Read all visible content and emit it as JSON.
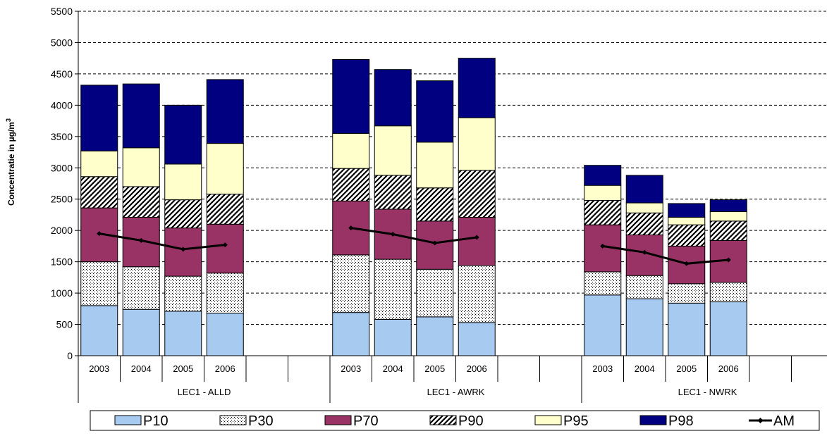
{
  "chart_data": {
    "type": "bar",
    "stacked": true,
    "ylabel": "Concentratie in µg/m",
    "ylabel_superscript": "3",
    "ylim": [
      0,
      5500
    ],
    "ytick_step": 500,
    "grid": "horizontal dashed",
    "legend_position": "bottom",
    "groups": [
      {
        "name": "LEC1 - ALLD",
        "categories": [
          "2003",
          "2004",
          "2005",
          "2006",
          "",
          ""
        ]
      },
      {
        "name": "LEC1 - AWRK",
        "categories": [
          "2003",
          "2004",
          "2005",
          "2006",
          "",
          ""
        ]
      },
      {
        "name": "LEC1 - NWRK",
        "categories": [
          "2003",
          "2004",
          "2005",
          "2006",
          "",
          ""
        ]
      }
    ],
    "series": [
      {
        "name": "P10",
        "pattern": "solid",
        "color": "#a6caf0",
        "values": [
          [
            800,
            740,
            710,
            680
          ],
          [
            690,
            580,
            620,
            530
          ],
          [
            970,
            910,
            840,
            860
          ]
        ]
      },
      {
        "name": "P30",
        "pattern": "dots",
        "color": "#ffffff",
        "values": [
          [
            1500,
            1420,
            1270,
            1320
          ],
          [
            1610,
            1540,
            1380,
            1440
          ],
          [
            1340,
            1280,
            1150,
            1170
          ]
        ]
      },
      {
        "name": "P70",
        "pattern": "solid",
        "color": "#993366",
        "values": [
          [
            2360,
            2210,
            2040,
            2100
          ],
          [
            2470,
            2340,
            2150,
            2210
          ],
          [
            2090,
            1930,
            1750,
            1840
          ]
        ]
      },
      {
        "name": "P90",
        "pattern": "diagonal",
        "color": "#ffffff",
        "values": [
          [
            2860,
            2700,
            2490,
            2580
          ],
          [
            2990,
            2880,
            2680,
            2960
          ],
          [
            2480,
            2280,
            2090,
            2150
          ]
        ]
      },
      {
        "name": "P95",
        "pattern": "solid",
        "color": "#ffffcc",
        "values": [
          [
            3270,
            3320,
            3060,
            3390
          ],
          [
            3550,
            3670,
            3410,
            3800
          ],
          [
            2720,
            2440,
            2210,
            2300
          ]
        ]
      },
      {
        "name": "P98",
        "pattern": "solid",
        "color": "#000080",
        "values": [
          [
            4320,
            4340,
            4000,
            4410
          ],
          [
            4730,
            4570,
            4390,
            4750
          ],
          [
            3040,
            2880,
            2430,
            2490
          ]
        ]
      }
    ],
    "lines": [
      {
        "name": "AM",
        "color": "#000000",
        "values": [
          [
            1950,
            1840,
            1700,
            1770
          ],
          [
            2040,
            1940,
            1800,
            1890
          ],
          [
            1750,
            1650,
            1470,
            1530
          ]
        ]
      }
    ]
  }
}
